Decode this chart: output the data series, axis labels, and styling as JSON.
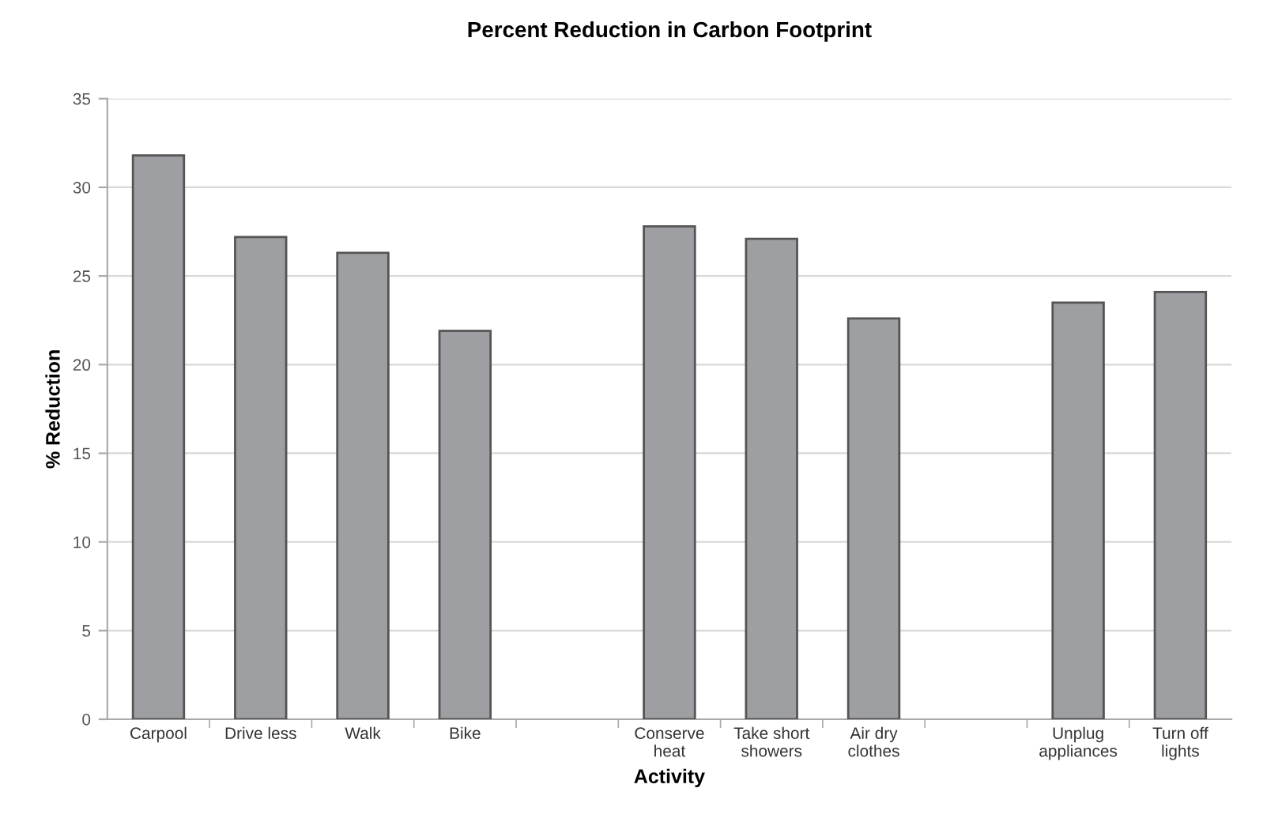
{
  "chart_data": {
    "type": "bar",
    "title": "Percent Reduction in Carbon Footprint",
    "xlabel": "Activity",
    "ylabel": "% Reduction",
    "categories": [
      "Carpool",
      "Drive less",
      "Walk",
      "Bike",
      null,
      "Conserve\nheat",
      "Take short\nshowers",
      "Air dry\nclothes",
      null,
      "Unplug\nappliances",
      "Turn off\nlights"
    ],
    "values": [
      31.8,
      27.2,
      26.3,
      21.9,
      null,
      27.8,
      27.1,
      22.6,
      null,
      23.5,
      24.1
    ],
    "color": "#9e9fa2",
    "ylim": [
      0,
      35
    ],
    "yticks": [
      0,
      5,
      10,
      15,
      20,
      25,
      30,
      35
    ],
    "grid": "y"
  }
}
